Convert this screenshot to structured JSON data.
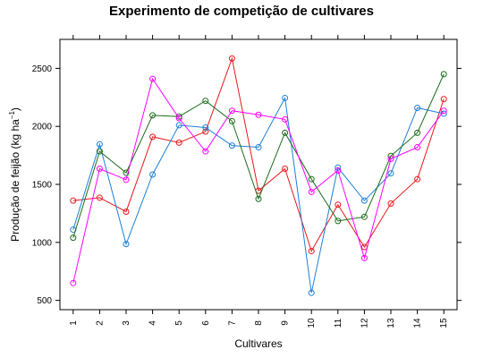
{
  "chart_data": {
    "type": "line",
    "title": "Experimento de competição de cultivares",
    "xlabel": "Cultivares",
    "ylabel": "Produção de feijão (kg ha",
    "ylabel_unit_superscript": "−1",
    "ylabel_close": ")",
    "x": [
      1,
      2,
      3,
      4,
      5,
      6,
      7,
      8,
      9,
      10,
      11,
      12,
      13,
      14,
      15
    ],
    "x_tick_labels": [
      "1",
      "2",
      "3",
      "4",
      "5",
      "6",
      "7",
      "8",
      "9",
      "10",
      "11",
      "12",
      "13",
      "14",
      "15"
    ],
    "y_ticks": [
      500,
      1000,
      1500,
      2000,
      2500
    ],
    "y_tick_labels": [
      "500",
      "1000",
      "1500",
      "2000",
      "2500"
    ],
    "xlim": [
      0.5,
      15.5
    ],
    "ylim": [
      420,
      2750
    ],
    "grid": false,
    "legend": "none",
    "markers": "open-circle",
    "series": [
      {
        "color": "#e41a1c",
        "values": [
          1360,
          1385,
          1265,
          1910,
          1860,
          1955,
          2585,
          1445,
          1635,
          925,
          1325,
          960,
          1335,
          1545,
          2235
        ]
      },
      {
        "color": "#1e7fd6",
        "values": [
          1110,
          1845,
          985,
          1585,
          2010,
          1990,
          1835,
          1820,
          2245,
          565,
          1645,
          1360,
          1595,
          2160,
          2110
        ]
      },
      {
        "color": "#1a6b1a",
        "values": [
          1040,
          1785,
          1600,
          2095,
          2085,
          2220,
          2045,
          1375,
          1945,
          1545,
          1185,
          1220,
          1745,
          1945,
          2450
        ]
      },
      {
        "color": "#ff00ff",
        "values": [
          650,
          1635,
          1540,
          2410,
          2070,
          1785,
          2135,
          2100,
          2060,
          1435,
          1620,
          865,
          1720,
          1820,
          2135
        ]
      }
    ]
  }
}
